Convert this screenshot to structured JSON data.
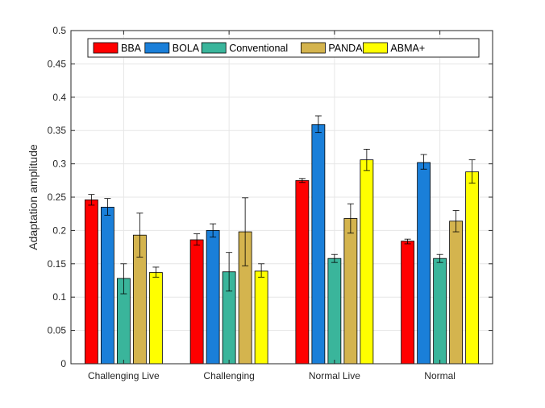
{
  "chart_data": {
    "type": "bar",
    "title": "",
    "xlabel": "",
    "ylabel": "Adaptation amplitude",
    "ylim": [
      0,
      0.5
    ],
    "yticks": [
      "0",
      "0.05",
      "0.1",
      "0.15",
      "0.2",
      "0.25",
      "0.3",
      "0.35",
      "0.4",
      "0.45",
      "0.5"
    ],
    "grid": true,
    "legend_position": "top",
    "legend_orientation": "horizontal",
    "categories": [
      "Challenging Live",
      "Challenging",
      "Normal Live",
      "Normal"
    ],
    "series": [
      {
        "name": "BBA",
        "color": "#ff0000",
        "values": [
          0.246,
          0.186,
          0.275,
          0.184
        ],
        "err_low": [
          0.238,
          0.178,
          0.272,
          0.18
        ],
        "err_high": [
          0.254,
          0.195,
          0.278,
          0.187
        ]
      },
      {
        "name": "BOLA",
        "color": "#1a7fd9",
        "values": [
          0.235,
          0.2,
          0.359,
          0.302
        ],
        "err_low": [
          0.223,
          0.19,
          0.347,
          0.292
        ],
        "err_high": [
          0.248,
          0.21,
          0.372,
          0.314
        ]
      },
      {
        "name": "Conventional",
        "color": "#3ab59b",
        "values": [
          0.128,
          0.138,
          0.158,
          0.158
        ],
        "err_low": [
          0.105,
          0.109,
          0.152,
          0.152
        ],
        "err_high": [
          0.15,
          0.167,
          0.164,
          0.164
        ]
      },
      {
        "name": "PANDA",
        "color": "#d4b44e",
        "values": [
          0.193,
          0.198,
          0.218,
          0.214
        ],
        "err_low": [
          0.16,
          0.147,
          0.196,
          0.198
        ],
        "err_high": [
          0.226,
          0.249,
          0.24,
          0.23
        ]
      },
      {
        "name": "ABMA+",
        "color": "#ffff00",
        "values": [
          0.137,
          0.139,
          0.306,
          0.288
        ],
        "err_low": [
          0.13,
          0.13,
          0.29,
          0.271
        ],
        "err_high": [
          0.145,
          0.15,
          0.322,
          0.306
        ]
      }
    ]
  }
}
